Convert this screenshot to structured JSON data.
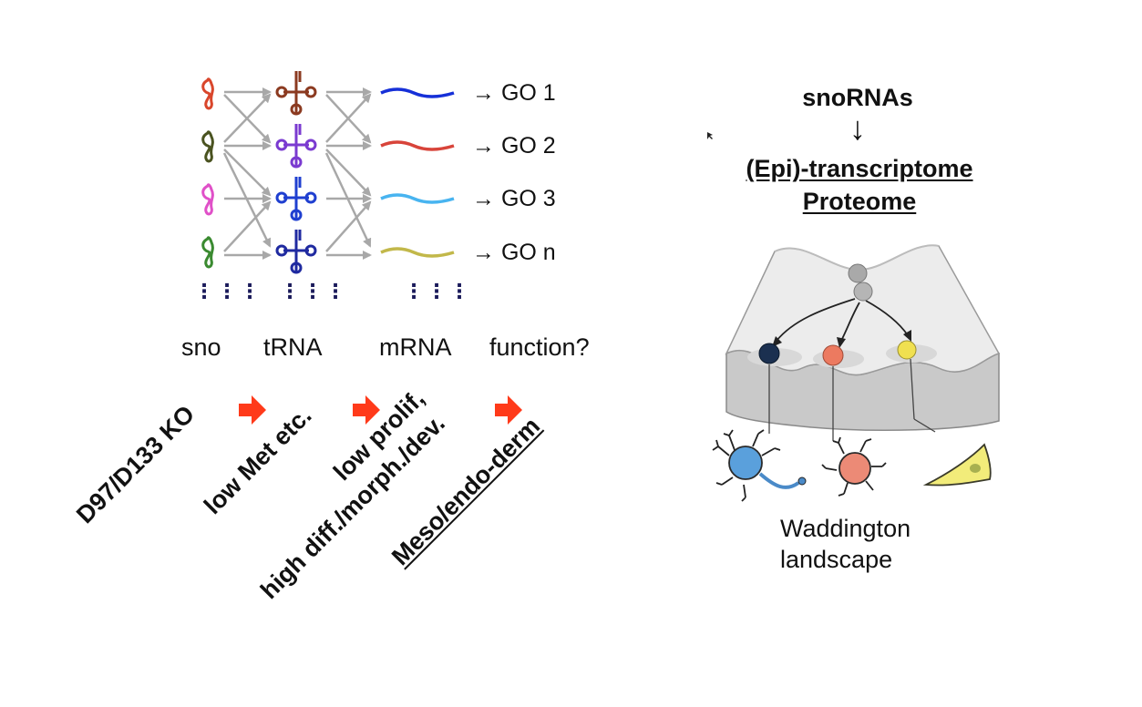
{
  "left_panel": {
    "columns": {
      "sno": "sno",
      "trna": "tRNA",
      "mrna": "mRNA",
      "function": "function?"
    },
    "go_terms": [
      "GO 1",
      "GO 2",
      "GO 3",
      "GO n"
    ],
    "go_arrow": "→",
    "ellipsis": "⋮",
    "cascade": {
      "step1": "D97/D133 KO",
      "step2": "low Met etc.",
      "step3_line1": "low prolif,",
      "step3_line2": "high diff./morph./dev.",
      "step4": "Meso/endo-derm"
    },
    "colors": {
      "sno": [
        "#d9462b",
        "#4a5320",
        "#e050c8",
        "#3a8a30"
      ],
      "trna": [
        "#8b3a20",
        "#7a3ad0",
        "#1f3fd0",
        "#1f2aa0"
      ],
      "mrna": [
        "#1630d8",
        "#d8443a",
        "#48b4f0",
        "#c2b84a"
      ],
      "cascade_arrow": "#ff3a1a"
    }
  },
  "right_panel": {
    "title": "snoRNAs",
    "down_arrow": "↓",
    "line1": "(Epi)-transcriptome",
    "line2": "Proteome",
    "caption_line1": "Waddington",
    "caption_line2": "landscape",
    "ball_colors": [
      "#a9a9a9",
      "#1b3050",
      "#ec7a60",
      "#f0e050"
    ]
  }
}
